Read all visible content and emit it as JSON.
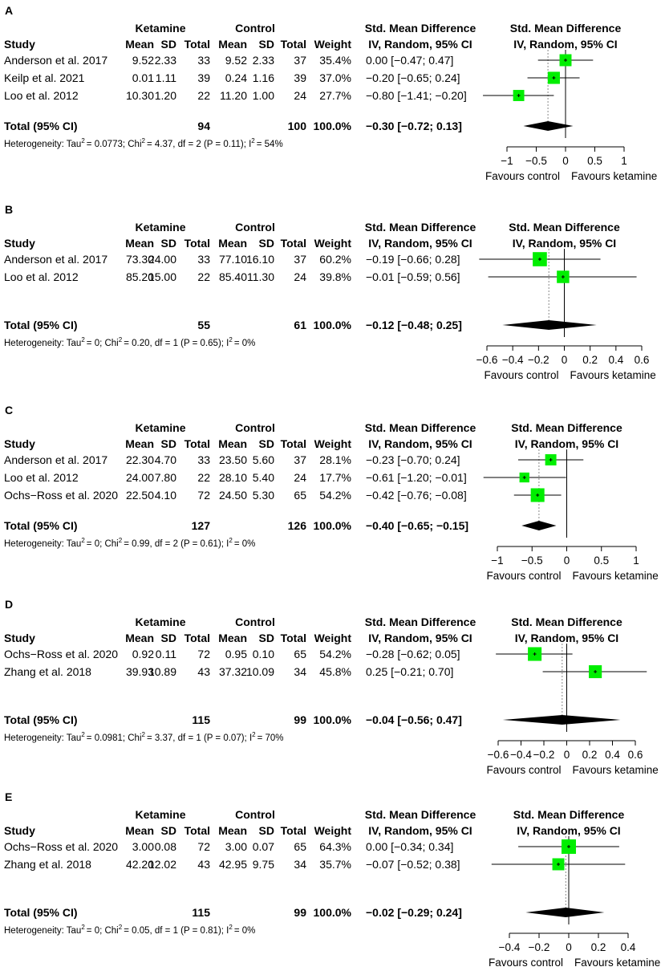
{
  "panels": [
    {
      "label": "A",
      "group1": "Ketamine",
      "group2": "Control",
      "col_headers": {
        "study": "Study",
        "mean1": "Mean",
        "sd1": "SD",
        "total1": "Total",
        "mean2": "Mean",
        "sd2": "SD",
        "total2": "Total",
        "weight": "Weight",
        "smd_line1": "Std. Mean Difference",
        "smd_line2": "IV, Random, 95% CI"
      },
      "studies": [
        {
          "study": "Anderson et al. 2017",
          "mean1": "9.52",
          "sd1": "2.33",
          "total1": "33",
          "mean2": "9.52",
          "sd2": "2.33",
          "total2": "37",
          "weight": "35.4%",
          "ci": "0.00 [−0.47;  0.47]"
        },
        {
          "study": "Keilp et al. 2021",
          "mean1": "0.01",
          "sd1": "1.11",
          "total1": "39",
          "mean2": "0.24",
          "sd2": "1.16",
          "total2": "39",
          "weight": "37.0%",
          "ci": "−0.20 [−0.65;  0.24]"
        },
        {
          "study": "Loo et al. 2012",
          "mean1": "10.30",
          "sd1": "1.20",
          "total1": "22",
          "mean2": "11.20",
          "sd2": "1.00",
          "total2": "24",
          "weight": "27.7%",
          "ci": "−0.80 [−1.41; −0.20]"
        }
      ],
      "total": {
        "label": "Total (95% CI)",
        "total1": "94",
        "total2": "100",
        "weight": "100.0%",
        "ci": "−0.30 [−0.72;  0.13]"
      },
      "heterogeneity": {
        "prefix": "Heterogeneity: Tau",
        "tau2": "= 0.0773; Chi",
        "chi2": "= 4.37, df = 2 (P = 0.11); I",
        "i2": "= 54%",
        "sup": "2"
      },
      "favours_left": "Favours control",
      "favours_right": "Favours ketamine"
    },
    {
      "label": "B",
      "group1": "Ketamine",
      "group2": "Control",
      "col_headers": {
        "study": "Study",
        "mean1": "Mean",
        "sd1": "SD",
        "total1": "Total",
        "mean2": "Mean",
        "sd2": "SD",
        "total2": "Total",
        "weight": "Weight",
        "smd_line1": "Std. Mean Difference",
        "smd_line2": "IV, Random, 95% CI"
      },
      "studies": [
        {
          "study": "Anderson et al. 2017",
          "mean1": "73.30",
          "sd1": "24.00",
          "total1": "33",
          "mean2": "77.10",
          "sd2": "16.10",
          "total2": "37",
          "weight": "60.2%",
          "ci": "−0.19 [−0.66; 0.28]"
        },
        {
          "study": "Loo et al. 2012",
          "mean1": "85.20",
          "sd1": "15.00",
          "total1": "22",
          "mean2": "85.40",
          "sd2": "11.30",
          "total2": "24",
          "weight": "39.8%",
          "ci": "−0.01 [−0.59; 0.56]"
        }
      ],
      "total": {
        "label": "Total (95% CI)",
        "total1": "55",
        "total2": "61",
        "weight": "100.0%",
        "ci": "−0.12 [−0.48; 0.25]"
      },
      "heterogeneity": {
        "prefix": "Heterogeneity: Tau",
        "tau2": "= 0; Chi",
        "chi2": "= 0.20, df = 1 (P = 0.65); I",
        "i2": "= 0%",
        "sup": "2"
      },
      "favours_left": "Favours control",
      "favours_right": "Favours ketamine"
    },
    {
      "label": "C",
      "group1": "Ketamine",
      "group2": "Control",
      "col_headers": {
        "study": "Study",
        "mean1": "Mean",
        "sd1": "SD",
        "total1": "Total",
        "mean2": "Mean",
        "sd2": "SD",
        "total2": "Total",
        "weight": "Weight",
        "smd_line1": "Std. Mean Difference",
        "smd_line2": "IV, Random, 95% CI"
      },
      "studies": [
        {
          "study": "Anderson et al. 2017",
          "mean1": "22.30",
          "sd1": "4.70",
          "total1": "33",
          "mean2": "23.50",
          "sd2": "5.60",
          "total2": "37",
          "weight": "28.1%",
          "ci": "−0.23 [−0.70;  0.24]"
        },
        {
          "study": "Loo et al. 2012",
          "mean1": "24.00",
          "sd1": "7.80",
          "total1": "22",
          "mean2": "28.10",
          "sd2": "5.40",
          "total2": "24",
          "weight": "17.7%",
          "ci": "−0.61 [−1.20; −0.01]"
        },
        {
          "study": "Ochs−Ross et al. 2020",
          "mean1": "22.50",
          "sd1": "4.10",
          "total1": "72",
          "mean2": "24.50",
          "sd2": "5.30",
          "total2": "65",
          "weight": "54.2%",
          "ci": "−0.42 [−0.76; −0.08]"
        }
      ],
      "total": {
        "label": "Total (95% CI)",
        "total1": "127",
        "total2": "126",
        "weight": "100.0%",
        "ci": "−0.40 [−0.65; −0.15]"
      },
      "heterogeneity": {
        "prefix": "Heterogeneity: Tau",
        "tau2": "= 0; Chi",
        "chi2": "= 0.99, df = 2 (P = 0.61); I",
        "i2": "= 0%",
        "sup": "2"
      },
      "favours_left": "Favours control",
      "favours_right": "Favours ketamine"
    },
    {
      "label": "D",
      "group1": "Ketamine",
      "group2": "Control",
      "col_headers": {
        "study": "Study",
        "mean1": "Mean",
        "sd1": "SD",
        "total1": "Total",
        "mean2": "Mean",
        "sd2": "SD",
        "total2": "Total",
        "weight": "Weight",
        "smd_line1": "Std. Mean Difference",
        "smd_line2": "IV, Random, 95% CI"
      },
      "studies": [
        {
          "study": "Ochs−Ross et al. 2020",
          "mean1": "0.92",
          "sd1": "0.11",
          "total1": "72",
          "mean2": "0.95",
          "sd2": "0.10",
          "total2": "65",
          "weight": "54.2%",
          "ci": "−0.28 [−0.62; 0.05]"
        },
        {
          "study": "Zhang et al. 2018",
          "mean1": "39.93",
          "sd1": "10.89",
          "total1": "43",
          "mean2": "37.32",
          "sd2": "10.09",
          "total2": "34",
          "weight": "45.8%",
          "ci": "0.25 [−0.21; 0.70]"
        }
      ],
      "total": {
        "label": "Total (95% CI)",
        "total1": "115",
        "total2": "99",
        "weight": "100.0%",
        "ci": "−0.04 [−0.56; 0.47]"
      },
      "heterogeneity": {
        "prefix": "Heterogeneity: Tau",
        "tau2": "= 0.0981; Chi",
        "chi2": "= 3.37, df = 1 (P = 0.07); I",
        "i2": "= 70%",
        "sup": "2"
      },
      "favours_left": "Favours control",
      "favours_right": "Favours ketamine"
    },
    {
      "label": "E",
      "group1": "Ketamine",
      "group2": "Control",
      "col_headers": {
        "study": "Study",
        "mean1": "Mean",
        "sd1": "SD",
        "total1": "Total",
        "mean2": "Mean",
        "sd2": "SD",
        "total2": "Total",
        "weight": "Weight",
        "smd_line1": "Std. Mean Difference",
        "smd_line2": "IV, Random, 95% CI"
      },
      "studies": [
        {
          "study": "Ochs−Ross et al. 2020",
          "mean1": "3.00",
          "sd1": "0.08",
          "total1": "72",
          "mean2": "3.00",
          "sd2": "0.07",
          "total2": "65",
          "weight": "64.3%",
          "ci": "0.00 [−0.34; 0.34]"
        },
        {
          "study": "Zhang et al. 2018",
          "mean1": "42.20",
          "sd1": "12.02",
          "total1": "43",
          "mean2": "42.95",
          "sd2": "9.75",
          "total2": "34",
          "weight": "35.7%",
          "ci": "−0.07 [−0.52; 0.38]"
        }
      ],
      "total": {
        "label": "Total (95% CI)",
        "total1": "115",
        "total2": "99",
        "weight": "100.0%",
        "ci": "−0.02 [−0.29; 0.24]"
      },
      "heterogeneity": {
        "prefix": "Heterogeneity: Tau",
        "tau2": "= 0; Chi",
        "chi2": "= 0.05, df = 1 (P = 0.81); I",
        "i2": "= 0%",
        "sup": "2"
      },
      "favours_left": "Favours control",
      "favours_right": "Favours ketamine"
    }
  ],
  "chart_data": [
    {
      "type": "forest",
      "panel": "A",
      "title": "Std. Mean Difference",
      "subtitle": "IV, Random, 95% CI",
      "xlim": [
        -1,
        1
      ],
      "ticks": [
        -1,
        -0.5,
        0,
        0.5,
        1
      ],
      "tick_labels": [
        "−1",
        "−0.5",
        "0",
        "0.5",
        "1"
      ],
      "studies": [
        {
          "est": 0.0,
          "lo": -0.47,
          "hi": 0.47,
          "weight": 35.4
        },
        {
          "est": -0.2,
          "lo": -0.65,
          "hi": 0.24,
          "weight": 37.0
        },
        {
          "est": -0.8,
          "lo": -1.41,
          "hi": -0.2,
          "weight": 27.7
        }
      ],
      "pooled": {
        "est": -0.3,
        "lo": -0.72,
        "hi": 0.13
      }
    },
    {
      "type": "forest",
      "panel": "B",
      "title": "Std. Mean Difference",
      "subtitle": "IV, Random, 95% CI",
      "xlim": [
        -0.6,
        0.6
      ],
      "ticks": [
        -0.6,
        -0.4,
        -0.2,
        0,
        0.2,
        0.4,
        0.6
      ],
      "tick_labels": [
        "−0.6",
        "−0.4",
        "−0.2",
        "0",
        "0.2",
        "0.4",
        "0.6"
      ],
      "studies": [
        {
          "est": -0.19,
          "lo": -0.66,
          "hi": 0.28,
          "weight": 60.2
        },
        {
          "est": -0.01,
          "lo": -0.59,
          "hi": 0.56,
          "weight": 39.8
        }
      ],
      "pooled": {
        "est": -0.12,
        "lo": -0.48,
        "hi": 0.25
      }
    },
    {
      "type": "forest",
      "panel": "C",
      "title": "Std. Mean Difference",
      "subtitle": "IV, Random, 95% CI",
      "xlim": [
        -1,
        1
      ],
      "ticks": [
        -1,
        -0.5,
        0,
        0.5,
        1
      ],
      "tick_labels": [
        "−1",
        "−0.5",
        "0",
        "0.5",
        "1"
      ],
      "studies": [
        {
          "est": -0.23,
          "lo": -0.7,
          "hi": 0.24,
          "weight": 28.1
        },
        {
          "est": -0.61,
          "lo": -1.2,
          "hi": -0.01,
          "weight": 17.7
        },
        {
          "est": -0.42,
          "lo": -0.76,
          "hi": -0.08,
          "weight": 54.2
        }
      ],
      "pooled": {
        "est": -0.4,
        "lo": -0.65,
        "hi": -0.15
      }
    },
    {
      "type": "forest",
      "panel": "D",
      "title": "Std. Mean Difference",
      "subtitle": "IV, Random, 95% CI",
      "xlim": [
        -0.6,
        0.6
      ],
      "ticks": [
        -0.6,
        -0.4,
        -0.2,
        0,
        0.2,
        0.4,
        0.6
      ],
      "tick_labels": [
        "−0.6",
        "−0.4",
        "−0.2",
        "0",
        "0.2",
        "0.4",
        "0.6"
      ],
      "studies": [
        {
          "est": -0.28,
          "lo": -0.62,
          "hi": 0.05,
          "weight": 54.2
        },
        {
          "est": 0.25,
          "lo": -0.21,
          "hi": 0.7,
          "weight": 45.8
        }
      ],
      "pooled": {
        "est": -0.04,
        "lo": -0.56,
        "hi": 0.47
      }
    },
    {
      "type": "forest",
      "panel": "E",
      "title": "Std. Mean Difference",
      "subtitle": "IV, Random, 95% CI",
      "xlim": [
        -0.4,
        0.4
      ],
      "ticks": [
        -0.4,
        -0.2,
        0,
        0.2,
        0.4
      ],
      "tick_labels": [
        "−0.4",
        "−0.2",
        "0",
        "0.2",
        "0.4"
      ],
      "studies": [
        {
          "est": 0.0,
          "lo": -0.34,
          "hi": 0.34,
          "weight": 64.3
        },
        {
          "est": -0.07,
          "lo": -0.52,
          "hi": 0.38,
          "weight": 35.7
        }
      ],
      "pooled": {
        "est": -0.02,
        "lo": -0.29,
        "hi": 0.24
      }
    }
  ],
  "colors": {
    "box": "#00ee00",
    "line": "#000000",
    "ref": "#888888"
  }
}
